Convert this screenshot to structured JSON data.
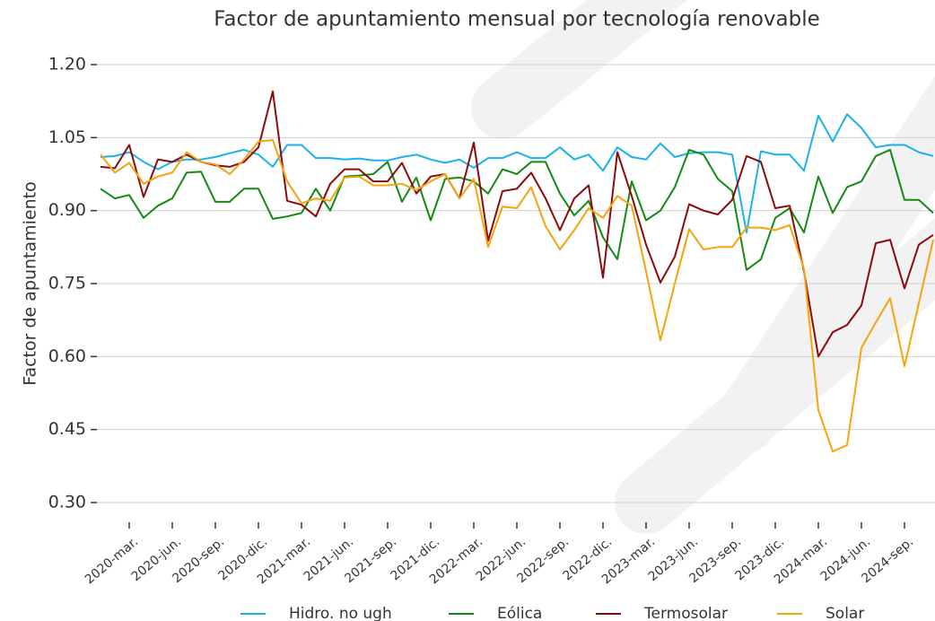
{
  "chart_data": {
    "type": "line",
    "title": "Factor de apuntamiento mensual por tecnología renovable",
    "y_label": "Factor de apuntamiento",
    "categories": [
      null,
      null,
      "2020-mar.",
      null,
      null,
      "2020-jun.",
      null,
      null,
      "2020-sep.",
      null,
      null,
      "2020-dic.",
      null,
      null,
      "2021-mar.",
      null,
      null,
      "2021-jun.",
      null,
      null,
      "2021-sep.",
      null,
      null,
      "2021-dic.",
      null,
      null,
      "2022-mar.",
      null,
      null,
      "2022-jun.",
      null,
      null,
      "2022-sep.",
      null,
      null,
      "2022-dic.",
      null,
      null,
      "2023-mar.",
      null,
      null,
      "2023-jun.",
      null,
      null,
      "2023-sep.",
      null,
      null,
      "2023-dic.",
      null,
      null,
      "2024-mar.",
      null,
      null,
      "2024-jun.",
      null,
      null,
      "2024-sep.",
      null,
      null
    ],
    "series": [
      {
        "name": "Hidro. no ugh",
        "color": "#1ab2ee",
        "values": [
          1.01,
          1.012,
          1.02,
          1.0,
          0.985,
          1.0,
          1.005,
          1.005,
          1.01,
          1.018,
          1.025,
          1.015,
          0.99,
          1.035,
          1.035,
          1.008,
          1.008,
          1.005,
          1.007,
          1.003,
          1.003,
          1.01,
          1.015,
          1.005,
          0.998,
          1.005,
          0.988,
          1.008,
          1.008,
          1.02,
          1.008,
          1.008,
          1.03,
          1.005,
          1.015,
          0.982,
          1.03,
          1.01,
          1.005,
          1.038,
          1.01,
          1.018,
          1.02,
          1.02,
          1.015,
          0.855,
          1.022,
          1.015,
          1.015,
          0.982,
          1.095,
          1.042,
          1.098,
          1.07,
          1.03,
          1.035,
          1.035,
          1.02,
          1.012
        ]
      },
      {
        "name": "Eólica",
        "color": "#138a13",
        "values": [
          0.945,
          0.925,
          0.932,
          0.885,
          0.91,
          0.925,
          0.978,
          0.98,
          0.918,
          0.918,
          0.945,
          0.945,
          0.883,
          0.888,
          0.895,
          0.945,
          0.9,
          0.97,
          0.972,
          0.975,
          1.0,
          0.918,
          0.968,
          0.88,
          0.965,
          0.968,
          0.96,
          0.935,
          0.985,
          0.975,
          1.0,
          1.0,
          0.935,
          0.89,
          0.92,
          0.845,
          0.8,
          0.96,
          0.88,
          0.9,
          0.948,
          1.025,
          1.015,
          0.965,
          0.94,
          0.778,
          0.8,
          0.885,
          0.905,
          0.855,
          0.97,
          0.895,
          0.948,
          0.96,
          1.012,
          1.025,
          0.922,
          0.922,
          0.895
        ]
      },
      {
        "name": "Termosolar",
        "color": "#8b0a0a",
        "values": [
          0.99,
          0.987,
          1.035,
          0.928,
          1.005,
          1.0,
          1.015,
          1.0,
          0.993,
          0.99,
          1.0,
          1.03,
          1.145,
          0.92,
          0.912,
          0.888,
          0.955,
          0.985,
          0.985,
          0.96,
          0.96,
          0.998,
          0.935,
          0.97,
          0.975,
          0.925,
          1.04,
          0.838,
          0.94,
          0.945,
          0.978,
          0.925,
          0.86,
          0.925,
          0.952,
          0.762,
          1.02,
          0.93,
          0.83,
          0.752,
          0.805,
          0.913,
          0.9,
          0.892,
          0.922,
          1.012,
          1.0,
          0.905,
          0.91,
          0.775,
          0.6,
          0.65,
          0.665,
          0.705,
          0.833,
          0.84,
          0.74,
          0.83,
          0.85
        ]
      },
      {
        "name": "Solar",
        "color": "#f5a40f",
        "values": [
          1.015,
          0.978,
          0.998,
          0.955,
          0.97,
          0.978,
          1.02,
          1.0,
          0.995,
          0.975,
          1.005,
          1.042,
          1.045,
          0.96,
          0.915,
          0.925,
          0.92,
          0.968,
          0.97,
          0.952,
          0.952,
          0.955,
          0.942,
          0.96,
          0.975,
          0.925,
          0.965,
          0.825,
          0.908,
          0.905,
          0.948,
          0.868,
          0.82,
          0.86,
          0.905,
          0.885,
          0.93,
          0.91,
          0.775,
          0.633,
          0.75,
          0.862,
          0.82,
          0.825,
          0.825,
          0.865,
          0.865,
          0.86,
          0.87,
          0.78,
          0.49,
          0.405,
          0.418,
          0.618,
          0.67,
          0.72,
          0.58,
          0.71,
          0.84
        ]
      }
    ],
    "ylim": [
      0.3,
      1.2
    ],
    "yticks": [
      {
        "value": 0.3,
        "label": "0.30"
      },
      {
        "value": 0.45,
        "label": "0.45"
      },
      {
        "value": 0.6,
        "label": "0.60"
      },
      {
        "value": 0.75,
        "label": "0.75"
      },
      {
        "value": 0.9,
        "label": "0.90"
      },
      {
        "value": 1.05,
        "label": "1.05"
      },
      {
        "value": 1.2,
        "label": "1.20"
      }
    ],
    "grid": true,
    "legend": "bottom"
  }
}
